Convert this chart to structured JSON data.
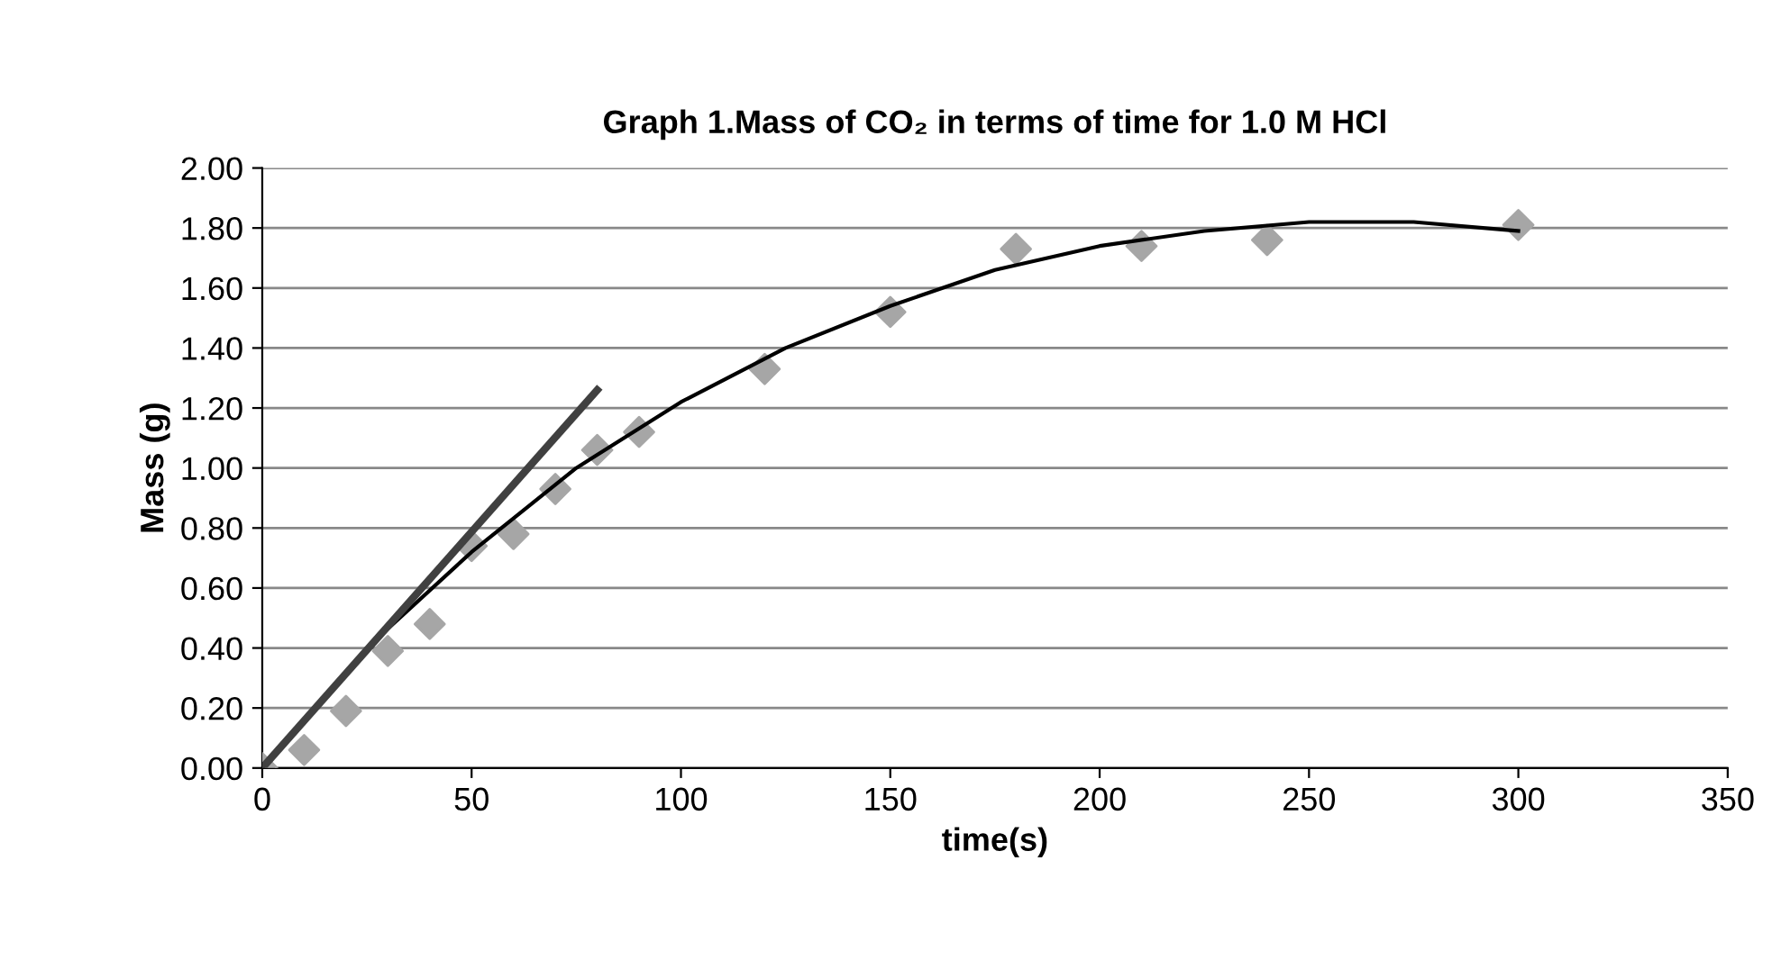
{
  "chart_data": {
    "type": "scatter",
    "title": "Graph 1.Mass of CO₂ in terms of time for 1.0 M HCl",
    "xlabel": "time(s)",
    "ylabel": "Mass (g)",
    "xlim": [
      0,
      350
    ],
    "xticks": [
      0,
      50,
      100,
      150,
      200,
      250,
      300,
      350
    ],
    "ylim": [
      0,
      2
    ],
    "yticks": [
      {
        "value": 0,
        "label": "0.00"
      },
      {
        "value": 0.2,
        "label": "0.20"
      },
      {
        "value": 0.4,
        "label": "0.40"
      },
      {
        "value": 0.6,
        "label": "0.60"
      },
      {
        "value": 0.8,
        "label": "0.80"
      },
      {
        "value": 1.0,
        "label": "1.00"
      },
      {
        "value": 1.2,
        "label": "1.20"
      },
      {
        "value": 1.4,
        "label": "1.40"
      },
      {
        "value": 1.6,
        "label": "1.60"
      },
      {
        "value": 1.8,
        "label": "1.80"
      },
      {
        "value": 2.0,
        "label": "2.00"
      }
    ],
    "grid": "y",
    "legend": false,
    "series": [
      {
        "color": "#a6a6a6",
        "marker": "diamond",
        "x": [
          0,
          10,
          20,
          30,
          40,
          50,
          60,
          70,
          80,
          90,
          120,
          150,
          180,
          210,
          240,
          300
        ],
        "values": [
          0.0,
          0.06,
          0.19,
          0.39,
          0.48,
          0.74,
          0.78,
          0.93,
          1.06,
          1.12,
          1.33,
          1.52,
          1.73,
          1.74,
          1.76,
          1.81
        ]
      },
      {
        "type": "line",
        "color": "#000000",
        "marker": "none",
        "line_style": "solid",
        "x": [
          0,
          25,
          50,
          75,
          100,
          125,
          150,
          175,
          200,
          225,
          250,
          275,
          300
        ],
        "values": [
          0.0,
          0.4,
          0.72,
          1.0,
          1.22,
          1.4,
          1.54,
          1.66,
          1.74,
          1.79,
          1.82,
          1.82,
          1.79
        ]
      },
      {
        "type": "line",
        "color": "#404040",
        "marker": "none",
        "line_style": "solid",
        "x": [
          0,
          80
        ],
        "values": [
          0.0,
          1.26
        ]
      }
    ]
  }
}
